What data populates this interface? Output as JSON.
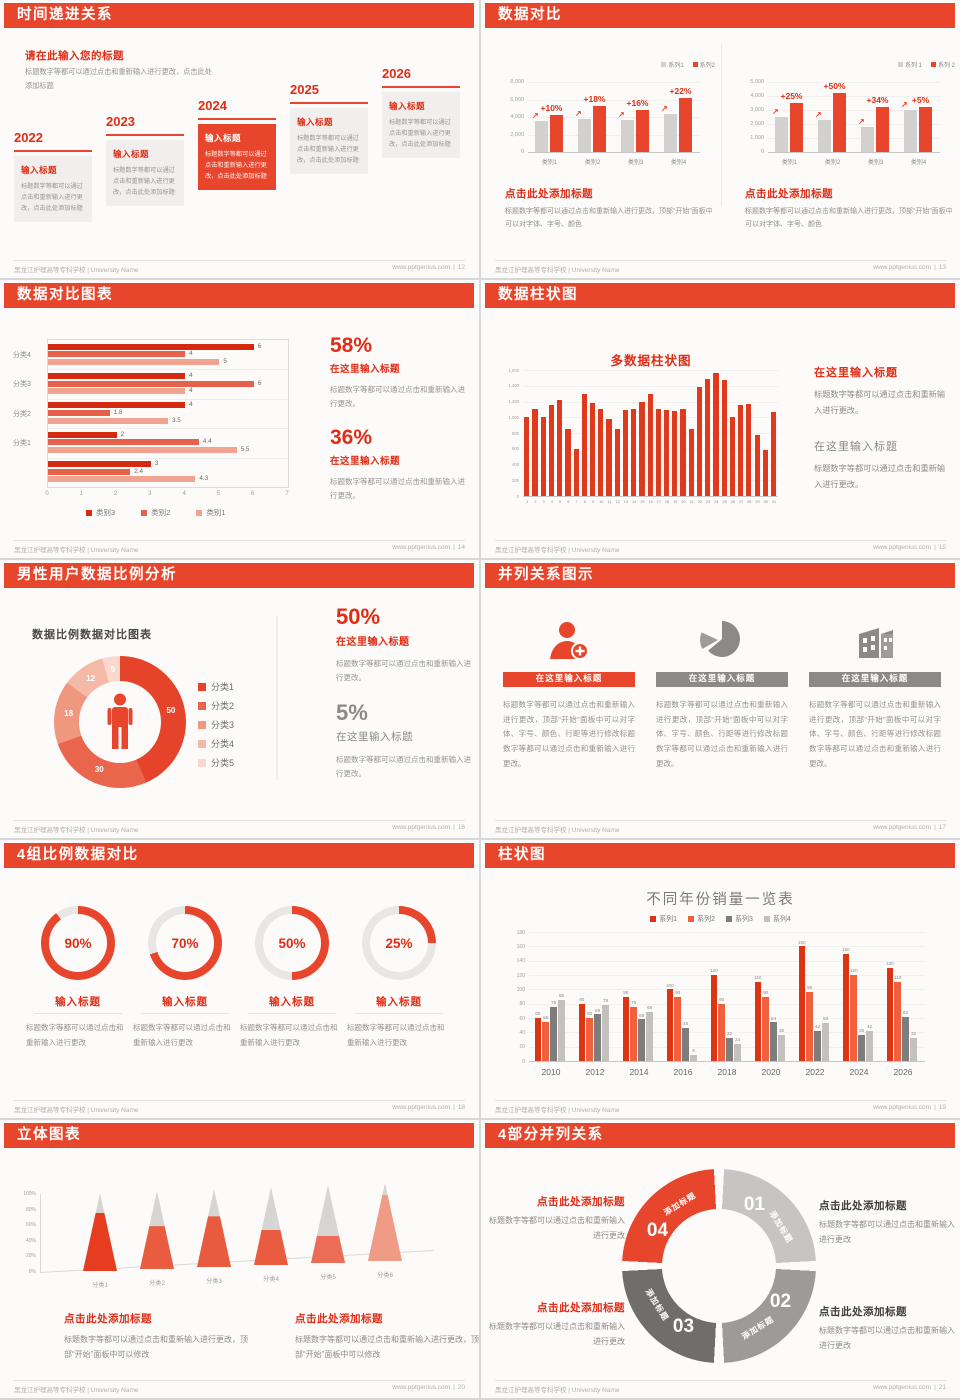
{
  "page_bg": "#d9d7d5",
  "colors": {
    "accent": "#e7462c",
    "accent_text": "#e02d15",
    "light_gray": "#c6c5c4",
    "mid_gray": "#9c9b9a",
    "dark_gray": "#6f6e6d",
    "gray_bar": "#d3d1cf"
  },
  "icons": {
    "growth_arrow": "↗"
  },
  "footer": {
    "school": "黑龙江护理高等专科学校 | University Name",
    "site": "www.pptgenius.com",
    "sep": "|"
  },
  "slides": {
    "s1": {
      "page": "12",
      "header": "时间递进关系",
      "title": "请在此输入您的标题",
      "subtitle": "标题数字等都可以通过点击和重新输入进行更改，点击此处添加标题",
      "steps": [
        {
          "year": "2022",
          "title": "输入标题",
          "body": "标题数字等都可以通过点击和重新输入进行更改，点击此处添加标题",
          "highlight": false
        },
        {
          "year": "2023",
          "title": "输入标题",
          "body": "标题数字等都可以通过点击和重新输入进行更改，点击此处添加标题",
          "highlight": false
        },
        {
          "year": "2024",
          "title": "输入标题",
          "body": "标题数字等都可以通过点击和重新输入进行更改，点击此处添加标题",
          "highlight": true
        },
        {
          "year": "2025",
          "title": "输入标题",
          "body": "标题数字等都可以通过点击和重新输入进行更改，点击此处添加标题",
          "highlight": false
        },
        {
          "year": "2026",
          "title": "输入标题",
          "body": "标题数字等都可以通过点击和重新输入进行更改，点击此处添加标题",
          "highlight": false
        }
      ]
    },
    "s2": {
      "page": "13",
      "header": "数据对比",
      "panels": [
        {
          "title": "点击此处添加标题",
          "body": "标题数字等都可以通过点击和重新输入进行更改，顶部“开始”面板中可以对字体、字号、颜色"
        },
        {
          "title": "点击此处添加标题",
          "body": "标题数字等都可以通过点击和重新输入进行更改，顶部“开始”面板中可以对字体、字号、颜色"
        }
      ]
    },
    "s3": {
      "page": "14",
      "header": "数据对比图表",
      "stats": [
        {
          "pct": "58%",
          "title": "在这里输入标题",
          "body": "标题数字等都可以通过点击和重新输入进行更改。"
        },
        {
          "pct": "36%",
          "title": "在这里输入标题",
          "body": "标题数字等都可以通过点击和重新输入进行更改。"
        }
      ]
    },
    "s4": {
      "page": "15",
      "header": "数据柱状图",
      "chart_title": "多数据柱状图",
      "blocks": [
        {
          "title": "在这里输入标题",
          "body": "标题数字等都可以通过点击和重新输入进行更改。",
          "accent": true
        },
        {
          "title": "在这里输入标题",
          "body": "标题数字等都可以通过点击和重新输入进行更改。",
          "accent": false
        }
      ]
    },
    "s5": {
      "page": "16",
      "header": "男性用户数据比例分析",
      "chart_title": "数据比例数据对比图表",
      "stats": [
        {
          "pct": "50%",
          "title": "在这里输入标题",
          "body": "标题数字等都可以通过点击和重新输入进行更改。",
          "accent": true
        },
        {
          "pct": "5%",
          "title": "在这里输入标题",
          "body": "标题数字等都可以通过点击和重新输入进行更改。",
          "accent": false
        }
      ]
    },
    "s6": {
      "page": "17",
      "header": "并列关系图示",
      "columns": [
        {
          "icon": "nurse-icon",
          "banner": "在这里输入标题",
          "accent": true,
          "body": "标题数字等都可以通过点击和重新输入进行更改，顶部“开始”面板中可以对字体、字号、颜色、行距等进行修改标题数字等都可以通过点击和重新输入进行更改。"
        },
        {
          "icon": "pie-chart-icon",
          "banner": "在这里输入标题",
          "accent": false,
          "body": "标题数字等都可以通过点击和重新输入进行更改，顶部“开始”面板中可以对字体、字号、颜色、行距等进行修改标题数字等都可以通过点击和重新输入进行更改。"
        },
        {
          "icon": "building-icon",
          "banner": "在这里输入标题",
          "accent": false,
          "body": "标题数字等都可以通过点击和重新输入进行更改，顶部“开始”面板中可以对字体、字号、颜色、行距等进行修改标题数字等都可以通过点击和重新输入进行更改。"
        }
      ]
    },
    "s7": {
      "page": "18",
      "header": "4组比例数据对比",
      "items": [
        {
          "label": "90%",
          "title": "输入标题",
          "body": "标题数字等都可以通过点击和重新输入进行更改"
        },
        {
          "label": "70%",
          "title": "输入标题",
          "body": "标题数字等都可以通过点击和重新输入进行更改"
        },
        {
          "label": "50%",
          "title": "输入标题",
          "body": "标题数字等都可以通过点击和重新输入进行更改"
        },
        {
          "label": "25%",
          "title": "输入标题",
          "body": "标题数字等都可以通过点击和重新输入进行更改"
        }
      ]
    },
    "s8": {
      "page": "19",
      "header": "柱状图",
      "chart_title": "不同年份销量一览表"
    },
    "s9": {
      "page": "20",
      "header": "立体图表",
      "blocks": [
        {
          "title": "点击此处添加标题",
          "body": "标题数字等都可以通过点击和重新输入进行更改，顶部“开始”面板中可以修改"
        },
        {
          "title": "点击此处添加标题",
          "body": "标题数字等都可以通过点击和重新输入进行更改，顶部“开始”面板中可以修改"
        }
      ]
    },
    "s10": {
      "page": "21",
      "header": "4部分并列关系",
      "seg_label": "添加标题",
      "segments": [
        "01",
        "02",
        "03",
        "04"
      ],
      "blocks": [
        {
          "side": "left",
          "title": "点击此处添加标题",
          "body": "标题数字等都可以通过点击和重新输入进行更改"
        },
        {
          "side": "left",
          "title": "点击此处添加标题",
          "body": "标题数字等都可以通过点击和重新输入进行更改"
        },
        {
          "side": "right",
          "title": "点击此处添加标题",
          "body": "标题数字等都可以通过点击和重新输入进行更改"
        },
        {
          "side": "right",
          "title": "点击此处添加标题",
          "body": "标题数字等都可以通过点击和重新输入进行更改"
        }
      ]
    }
  },
  "chart_data": [
    {
      "id": "s2l",
      "type": "bar",
      "categories": [
        "类别1",
        "类别2",
        "类别3",
        "类别4"
      ],
      "series": [
        {
          "name": "系列1",
          "color": "#d3d1cf",
          "values": [
            3500,
            3800,
            3700,
            4300
          ]
        },
        {
          "name": "系列2",
          "color": "#e7462c",
          "values": [
            4200,
            5300,
            4800,
            6200
          ]
        }
      ],
      "annotations": [
        "+10%",
        "+18%",
        "+16%",
        "+22%"
      ],
      "ylim": [
        0,
        8000
      ],
      "ystep": 2000,
      "grid": true,
      "legend_position": "top-right"
    },
    {
      "id": "s2r",
      "type": "bar",
      "categories": [
        "类别1",
        "类别2",
        "类别3",
        "类别4"
      ],
      "series": [
        {
          "name": "系列 1",
          "color": "#d3d1cf",
          "values": [
            2500,
            2300,
            1800,
            3000
          ]
        },
        {
          "name": "系列 2",
          "color": "#e7462c",
          "values": [
            3500,
            4200,
            3200,
            3200
          ]
        }
      ],
      "annotations": [
        "+25%",
        "+50%",
        "+34%",
        "+5%"
      ],
      "ylim": [
        0,
        5000
      ],
      "ystep": 1000,
      "grid": true,
      "legend_position": "top-right"
    },
    {
      "id": "s3",
      "type": "bar-horizontal",
      "categories": [
        "分类4",
        "分类3",
        "分类2",
        "分类1",
        ""
      ],
      "series": [
        {
          "name": "类别3",
          "color": "#d42a12",
          "values": [
            6,
            4,
            4,
            2,
            3
          ]
        },
        {
          "name": "类别2",
          "color": "#e6604a",
          "values": [
            4,
            6,
            1.8,
            4.4,
            2.4
          ]
        },
        {
          "name": "类别1",
          "color": "#f0a38f",
          "values": [
            5,
            4,
            3.5,
            5.5,
            4.3
          ]
        }
      ],
      "xlim": [
        0,
        7
      ],
      "value_labels": true,
      "legend_position": "bottom"
    },
    {
      "id": "s4",
      "type": "bar",
      "title": "多数据柱状图",
      "x": [
        1,
        2,
        3,
        4,
        5,
        6,
        7,
        8,
        9,
        10,
        11,
        12,
        13,
        14,
        15,
        16,
        17,
        18,
        19,
        20,
        21,
        22,
        23,
        24,
        25,
        26,
        27,
        28,
        29,
        30,
        31
      ],
      "values": [
        1000,
        1100,
        1000,
        1150,
        1220,
        850,
        600,
        1300,
        1180,
        1100,
        980,
        850,
        1090,
        1100,
        1190,
        1290,
        1100,
        1090,
        1080,
        1100,
        850,
        1390,
        1480,
        1560,
        1470,
        1000,
        1160,
        1170,
        770,
        590,
        1070
      ],
      "color": "#e03a1e",
      "ylim": [
        0,
        1600
      ],
      "ystep": 200,
      "grid": true
    },
    {
      "id": "s5",
      "type": "pie",
      "title": "数据比例数据对比图表",
      "labels": [
        "50",
        "30",
        "18",
        "12",
        "5"
      ],
      "values": [
        50,
        30,
        18,
        12,
        5
      ],
      "legend": [
        "分类1",
        "分类2",
        "分类3",
        "分类4",
        "分类5"
      ],
      "colors": [
        "#e6432b",
        "#e9654b",
        "#f0977f",
        "#f5b9a8",
        "#fad8cd"
      ],
      "center_icon": "male-person-icon",
      "legend_position": "right"
    },
    {
      "id": "s7",
      "type": "donut-progress",
      "values": [
        90,
        70,
        50,
        25
      ],
      "color": "#e7462c",
      "track": "#e9e7e5"
    },
    {
      "id": "s8",
      "type": "bar",
      "title": "不同年份销量一览表",
      "categories": [
        "2010",
        "2012",
        "2014",
        "2016",
        "2018",
        "2020",
        "2022",
        "2024",
        "2026"
      ],
      "series": [
        {
          "name": "系列1",
          "color": "#dc3514",
          "values": [
            60,
            80,
            90,
            100,
            120,
            110,
            160,
            150,
            130
          ]
        },
        {
          "name": "系列2",
          "color": "#f0603f",
          "values": [
            55,
            60,
            75,
            90,
            80,
            90,
            96,
            120,
            110
          ]
        },
        {
          "name": "系列3",
          "color": "#7f7d7c",
          "values": [
            75,
            65,
            58,
            46,
            32,
            54,
            42,
            36,
            62
          ]
        },
        {
          "name": "系列4",
          "color": "#c2c1c0",
          "values": [
            85,
            78,
            68,
            8,
            24,
            36,
            53,
            42,
            32
          ]
        }
      ],
      "ylim": [
        0,
        180
      ],
      "ystep": 20,
      "grid": true,
      "value_labels": true,
      "legend_position": "top"
    },
    {
      "id": "s9",
      "type": "cone",
      "categories": [
        "分类1",
        "分类2",
        "分类3",
        "分类4",
        "分类5",
        "分类6"
      ],
      "values_pct": [
        75,
        55,
        65,
        45,
        35,
        85
      ],
      "colors": [
        "#e63c1f",
        "#ea5c40",
        "#e95b3f",
        "#ea5c40",
        "#ec6d55",
        "#f09b85"
      ],
      "ylim_pct": [
        0,
        100
      ],
      "ystep_pct": 20
    }
  ]
}
